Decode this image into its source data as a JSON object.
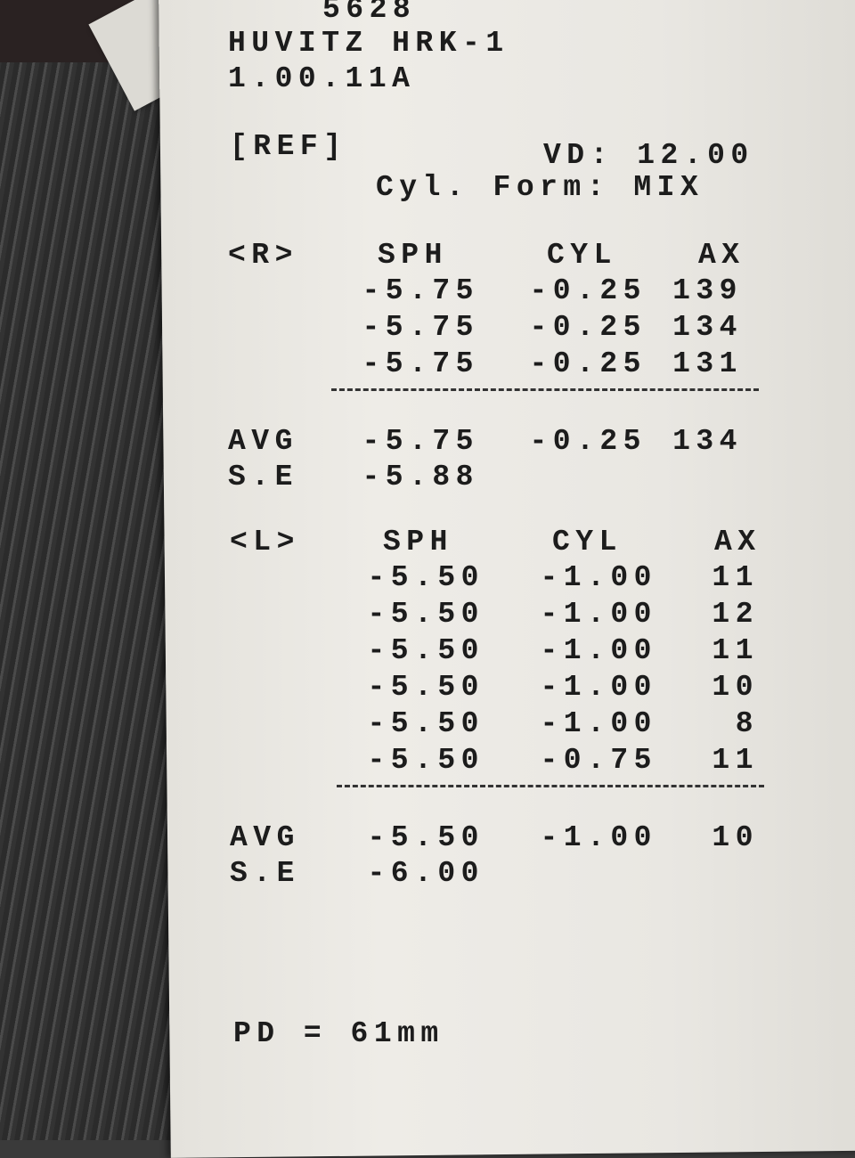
{
  "header": {
    "serial": "5628",
    "model": "HUVITZ HRK-1",
    "version": "1.00.11A"
  },
  "mode": {
    "label": "[REF]",
    "vd": "VD: 12.00",
    "cyl_form": "Cyl. Form: MIX"
  },
  "right_eye": {
    "label": "<R>",
    "columns": [
      "SPH",
      "CYL",
      "AX"
    ],
    "readings": [
      [
        "-5.75",
        "-0.25",
        "139"
      ],
      [
        "-5.75",
        "-0.25",
        "134"
      ],
      [
        "-5.75",
        "-0.25",
        "131"
      ]
    ],
    "avg_label": "AVG",
    "avg": [
      "-5.75",
      "-0.25",
      "134"
    ],
    "se_label": "S.E",
    "se": "-5.88"
  },
  "left_eye": {
    "label": "<L>",
    "columns": [
      "SPH",
      "CYL",
      "AX"
    ],
    "readings": [
      [
        "-5.50",
        "-1.00",
        "11"
      ],
      [
        "-5.50",
        "-1.00",
        "12"
      ],
      [
        "-5.50",
        "-1.00",
        "11"
      ],
      [
        "-5.50",
        "-1.00",
        "10"
      ],
      [
        "-5.50",
        "-1.00",
        "8"
      ],
      [
        "-5.50",
        "-0.75",
        "11"
      ]
    ],
    "avg_label": "AVG",
    "avg": [
      "-5.50",
      "-1.00",
      "10"
    ],
    "se_label": "S.E",
    "se": "-6.00"
  },
  "pd": "PD = 61mm"
}
